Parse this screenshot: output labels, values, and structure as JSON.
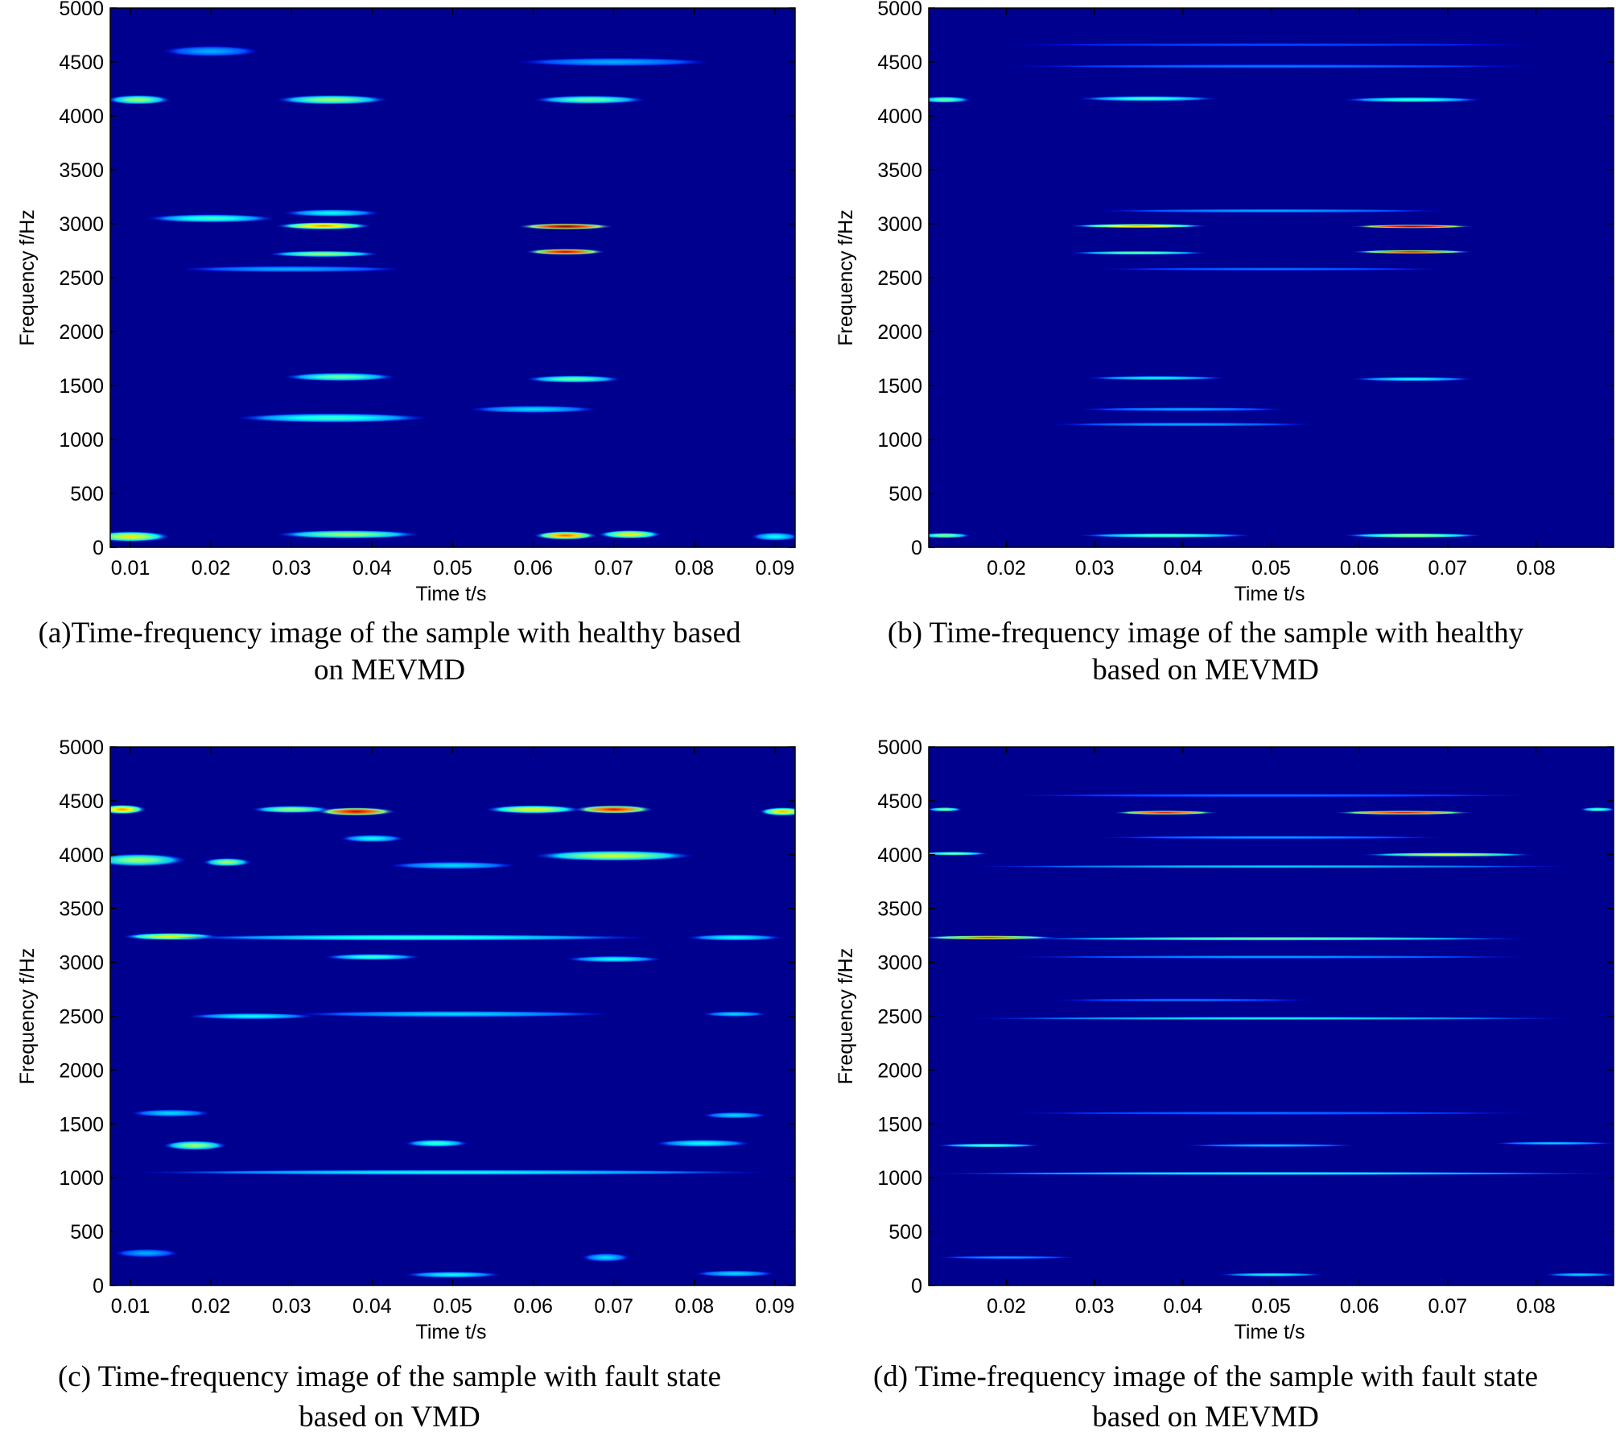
{
  "chart_data": [
    {
      "id": "a",
      "type": "heatmap",
      "xlabel": "Time t/s",
      "ylabel": "Frequency f/Hz",
      "xlim": [
        0.0075,
        0.0925
      ],
      "ylim": [
        0,
        5000
      ],
      "xticks": [
        0.01,
        0.02,
        0.03,
        0.04,
        0.05,
        0.06,
        0.07,
        0.08,
        0.09
      ],
      "xtick_labels": [
        "0.01",
        "0.02",
        "0.03",
        "0.04",
        "0.05",
        "0.06",
        "0.07",
        "0.08",
        "0.09"
      ],
      "yticks": [
        0,
        500,
        1000,
        1500,
        2000,
        2500,
        3000,
        3500,
        4000,
        4500,
        5000
      ],
      "ytick_labels": [
        "0",
        "500",
        "1000",
        "1500",
        "2000",
        "2500",
        "3000",
        "3500",
        "4000",
        "4500",
        "5000"
      ],
      "caption": [
        "(a)Time-frequency image of the sample with healthy based",
        "on MEVMD"
      ],
      "blobs": [
        {
          "t": 0.011,
          "f": 4150,
          "w": 0.004,
          "h": 45,
          "v": 0.55
        },
        {
          "t": 0.035,
          "f": 4150,
          "w": 0.007,
          "h": 45,
          "v": 0.55
        },
        {
          "t": 0.067,
          "f": 4150,
          "w": 0.007,
          "h": 40,
          "v": 0.5
        },
        {
          "t": 0.02,
          "f": 4600,
          "w": 0.006,
          "h": 50,
          "v": 0.3
        },
        {
          "t": 0.07,
          "f": 4500,
          "w": 0.012,
          "h": 40,
          "v": 0.3
        },
        {
          "t": 0.034,
          "f": 2980,
          "w": 0.006,
          "h": 35,
          "v": 0.75
        },
        {
          "t": 0.064,
          "f": 2975,
          "w": 0.006,
          "h": 30,
          "v": 1.0
        },
        {
          "t": 0.064,
          "f": 2740,
          "w": 0.005,
          "h": 30,
          "v": 0.95
        },
        {
          "t": 0.034,
          "f": 2720,
          "w": 0.007,
          "h": 30,
          "v": 0.55
        },
        {
          "t": 0.02,
          "f": 3050,
          "w": 0.008,
          "h": 40,
          "v": 0.45
        },
        {
          "t": 0.035,
          "f": 3100,
          "w": 0.006,
          "h": 35,
          "v": 0.4
        },
        {
          "t": 0.03,
          "f": 2580,
          "w": 0.014,
          "h": 30,
          "v": 0.3
        },
        {
          "t": 0.036,
          "f": 1580,
          "w": 0.007,
          "h": 40,
          "v": 0.5
        },
        {
          "t": 0.065,
          "f": 1560,
          "w": 0.006,
          "h": 35,
          "v": 0.5
        },
        {
          "t": 0.035,
          "f": 1200,
          "w": 0.012,
          "h": 45,
          "v": 0.45
        },
        {
          "t": 0.06,
          "f": 1280,
          "w": 0.008,
          "h": 35,
          "v": 0.35
        },
        {
          "t": 0.01,
          "f": 100,
          "w": 0.005,
          "h": 50,
          "v": 0.65
        },
        {
          "t": 0.037,
          "f": 120,
          "w": 0.009,
          "h": 40,
          "v": 0.55
        },
        {
          "t": 0.064,
          "f": 110,
          "w": 0.004,
          "h": 40,
          "v": 0.8
        },
        {
          "t": 0.072,
          "f": 120,
          "w": 0.004,
          "h": 40,
          "v": 0.65
        },
        {
          "t": 0.09,
          "f": 100,
          "w": 0.003,
          "h": 40,
          "v": 0.4
        }
      ]
    },
    {
      "id": "b",
      "type": "heatmap",
      "xlabel": "Time t/s",
      "ylabel": "Frequency f/Hz",
      "xlim": [
        0.0112,
        0.0888
      ],
      "ylim": [
        0,
        5000
      ],
      "xticks": [
        0.02,
        0.03,
        0.04,
        0.05,
        0.06,
        0.07,
        0.08
      ],
      "xtick_labels": [
        "0.02",
        "0.03",
        "0.04",
        "0.05",
        "0.06",
        "0.07",
        "0.08"
      ],
      "yticks": [
        0,
        500,
        1000,
        1500,
        2000,
        2500,
        3000,
        3500,
        4000,
        4500,
        5000
      ],
      "ytick_labels": [
        "0",
        "500",
        "1000",
        "1500",
        "2000",
        "2500",
        "3000",
        "3500",
        "4000",
        "4500",
        "5000"
      ],
      "caption": [
        "(b) Time-frequency image of the sample with healthy",
        "based on MEVMD"
      ],
      "blobs": [
        {
          "t": 0.013,
          "f": 4150,
          "w": 0.003,
          "h": 30,
          "v": 0.5
        },
        {
          "t": 0.036,
          "f": 4160,
          "w": 0.008,
          "h": 25,
          "v": 0.45
        },
        {
          "t": 0.066,
          "f": 4150,
          "w": 0.008,
          "h": 25,
          "v": 0.45
        },
        {
          "t": 0.05,
          "f": 4460,
          "w": 0.03,
          "h": 18,
          "v": 0.25
        },
        {
          "t": 0.05,
          "f": 4660,
          "w": 0.03,
          "h": 15,
          "v": 0.2
        },
        {
          "t": 0.035,
          "f": 2980,
          "w": 0.008,
          "h": 20,
          "v": 0.75
        },
        {
          "t": 0.066,
          "f": 2975,
          "w": 0.007,
          "h": 18,
          "v": 1.0
        },
        {
          "t": 0.066,
          "f": 2740,
          "w": 0.007,
          "h": 18,
          "v": 0.9
        },
        {
          "t": 0.035,
          "f": 2730,
          "w": 0.008,
          "h": 18,
          "v": 0.5
        },
        {
          "t": 0.05,
          "f": 3120,
          "w": 0.02,
          "h": 18,
          "v": 0.3
        },
        {
          "t": 0.05,
          "f": 2580,
          "w": 0.02,
          "h": 15,
          "v": 0.25
        },
        {
          "t": 0.037,
          "f": 1570,
          "w": 0.008,
          "h": 20,
          "v": 0.4
        },
        {
          "t": 0.066,
          "f": 1560,
          "w": 0.007,
          "h": 20,
          "v": 0.4
        },
        {
          "t": 0.04,
          "f": 1280,
          "w": 0.012,
          "h": 18,
          "v": 0.3
        },
        {
          "t": 0.04,
          "f": 1140,
          "w": 0.015,
          "h": 18,
          "v": 0.3
        },
        {
          "t": 0.013,
          "f": 110,
          "w": 0.003,
          "h": 25,
          "v": 0.55
        },
        {
          "t": 0.038,
          "f": 110,
          "w": 0.01,
          "h": 22,
          "v": 0.5
        },
        {
          "t": 0.066,
          "f": 110,
          "w": 0.008,
          "h": 22,
          "v": 0.6
        }
      ]
    },
    {
      "id": "c",
      "type": "heatmap",
      "xlabel": "Time t/s",
      "ylabel": "Frequency f/Hz",
      "xlim": [
        0.0075,
        0.0925
      ],
      "ylim": [
        0,
        5000
      ],
      "xticks": [
        0.01,
        0.02,
        0.03,
        0.04,
        0.05,
        0.06,
        0.07,
        0.08,
        0.09
      ],
      "xtick_labels": [
        "0.01",
        "0.02",
        "0.03",
        "0.04",
        "0.05",
        "0.06",
        "0.07",
        "0.08",
        "0.09"
      ],
      "yticks": [
        0,
        500,
        1000,
        1500,
        2000,
        2500,
        3000,
        3500,
        4000,
        4500,
        5000
      ],
      "ytick_labels": [
        "0",
        "500",
        "1000",
        "1500",
        "2000",
        "2500",
        "3000",
        "3500",
        "4000",
        "4500",
        "5000"
      ],
      "caption": [
        "(c) Time-frequency image of the sample with fault state",
        "based on VMD"
      ],
      "blobs": [
        {
          "t": 0.009,
          "f": 4420,
          "w": 0.003,
          "h": 45,
          "v": 0.75
        },
        {
          "t": 0.038,
          "f": 4400,
          "w": 0.005,
          "h": 40,
          "v": 0.95
        },
        {
          "t": 0.03,
          "f": 4420,
          "w": 0.005,
          "h": 35,
          "v": 0.55
        },
        {
          "t": 0.06,
          "f": 4420,
          "w": 0.006,
          "h": 40,
          "v": 0.65
        },
        {
          "t": 0.07,
          "f": 4420,
          "w": 0.005,
          "h": 40,
          "v": 0.9
        },
        {
          "t": 0.091,
          "f": 4400,
          "w": 0.003,
          "h": 40,
          "v": 0.7
        },
        {
          "t": 0.011,
          "f": 3950,
          "w": 0.006,
          "h": 60,
          "v": 0.55
        },
        {
          "t": 0.022,
          "f": 3930,
          "w": 0.003,
          "h": 40,
          "v": 0.55
        },
        {
          "t": 0.04,
          "f": 4150,
          "w": 0.004,
          "h": 35,
          "v": 0.4
        },
        {
          "t": 0.07,
          "f": 3990,
          "w": 0.01,
          "h": 50,
          "v": 0.6
        },
        {
          "t": 0.05,
          "f": 3900,
          "w": 0.008,
          "h": 35,
          "v": 0.35
        },
        {
          "t": 0.015,
          "f": 3240,
          "w": 0.006,
          "h": 35,
          "v": 0.65
        },
        {
          "t": 0.045,
          "f": 3230,
          "w": 0.03,
          "h": 30,
          "v": 0.45
        },
        {
          "t": 0.085,
          "f": 3230,
          "w": 0.006,
          "h": 30,
          "v": 0.4
        },
        {
          "t": 0.04,
          "f": 3050,
          "w": 0.006,
          "h": 30,
          "v": 0.45
        },
        {
          "t": 0.07,
          "f": 3030,
          "w": 0.006,
          "h": 30,
          "v": 0.4
        },
        {
          "t": 0.025,
          "f": 2500,
          "w": 0.008,
          "h": 30,
          "v": 0.4
        },
        {
          "t": 0.05,
          "f": 2520,
          "w": 0.02,
          "h": 30,
          "v": 0.35
        },
        {
          "t": 0.085,
          "f": 2520,
          "w": 0.004,
          "h": 25,
          "v": 0.35
        },
        {
          "t": 0.018,
          "f": 1300,
          "w": 0.004,
          "h": 45,
          "v": 0.55
        },
        {
          "t": 0.048,
          "f": 1320,
          "w": 0.004,
          "h": 35,
          "v": 0.45
        },
        {
          "t": 0.081,
          "f": 1320,
          "w": 0.006,
          "h": 35,
          "v": 0.4
        },
        {
          "t": 0.015,
          "f": 1600,
          "w": 0.005,
          "h": 35,
          "v": 0.35
        },
        {
          "t": 0.085,
          "f": 1580,
          "w": 0.004,
          "h": 30,
          "v": 0.35
        },
        {
          "t": 0.05,
          "f": 1050,
          "w": 0.04,
          "h": 25,
          "v": 0.4
        },
        {
          "t": 0.05,
          "f": 100,
          "w": 0.006,
          "h": 30,
          "v": 0.4
        },
        {
          "t": 0.069,
          "f": 260,
          "w": 0.003,
          "h": 40,
          "v": 0.35
        },
        {
          "t": 0.085,
          "f": 110,
          "w": 0.005,
          "h": 30,
          "v": 0.35
        },
        {
          "t": 0.012,
          "f": 300,
          "w": 0.004,
          "h": 40,
          "v": 0.3
        }
      ]
    },
    {
      "id": "d",
      "type": "heatmap",
      "xlabel": "Time t/s",
      "ylabel": "Frequency f/Hz",
      "xlim": [
        0.0112,
        0.0888
      ],
      "ylim": [
        0,
        5000
      ],
      "xticks": [
        0.02,
        0.03,
        0.04,
        0.05,
        0.06,
        0.07,
        0.08
      ],
      "xtick_labels": [
        "0.02",
        "0.03",
        "0.04",
        "0.05",
        "0.06",
        "0.07",
        "0.08"
      ],
      "yticks": [
        0,
        500,
        1000,
        1500,
        2000,
        2500,
        3000,
        3500,
        4000,
        4500,
        5000
      ],
      "ytick_labels": [
        "0",
        "500",
        "1000",
        "1500",
        "2000",
        "2500",
        "3000",
        "3500",
        "4000",
        "4500",
        "5000"
      ],
      "caption": [
        "(d) Time-frequency image of the sample with fault state",
        "based on MEVMD"
      ],
      "blobs": [
        {
          "t": 0.038,
          "f": 4390,
          "w": 0.006,
          "h": 20,
          "v": 0.9
        },
        {
          "t": 0.065,
          "f": 4390,
          "w": 0.008,
          "h": 20,
          "v": 0.9
        },
        {
          "t": 0.013,
          "f": 4420,
          "w": 0.002,
          "h": 20,
          "v": 0.55
        },
        {
          "t": 0.087,
          "f": 4420,
          "w": 0.002,
          "h": 20,
          "v": 0.5
        },
        {
          "t": 0.05,
          "f": 4550,
          "w": 0.03,
          "h": 15,
          "v": 0.25
        },
        {
          "t": 0.014,
          "f": 4010,
          "w": 0.004,
          "h": 18,
          "v": 0.55
        },
        {
          "t": 0.07,
          "f": 4000,
          "w": 0.01,
          "h": 20,
          "v": 0.6
        },
        {
          "t": 0.05,
          "f": 3890,
          "w": 0.035,
          "h": 15,
          "v": 0.35
        },
        {
          "t": 0.05,
          "f": 4160,
          "w": 0.02,
          "h": 15,
          "v": 0.3
        },
        {
          "t": 0.018,
          "f": 3230,
          "w": 0.008,
          "h": 20,
          "v": 0.85
        },
        {
          "t": 0.05,
          "f": 3220,
          "w": 0.03,
          "h": 18,
          "v": 0.5
        },
        {
          "t": 0.05,
          "f": 3050,
          "w": 0.03,
          "h": 15,
          "v": 0.3
        },
        {
          "t": 0.05,
          "f": 2480,
          "w": 0.035,
          "h": 15,
          "v": 0.4
        },
        {
          "t": 0.04,
          "f": 2650,
          "w": 0.015,
          "h": 15,
          "v": 0.25
        },
        {
          "t": 0.018,
          "f": 1300,
          "w": 0.006,
          "h": 18,
          "v": 0.5
        },
        {
          "t": 0.05,
          "f": 1300,
          "w": 0.01,
          "h": 15,
          "v": 0.35
        },
        {
          "t": 0.082,
          "f": 1320,
          "w": 0.007,
          "h": 15,
          "v": 0.35
        },
        {
          "t": 0.05,
          "f": 1040,
          "w": 0.04,
          "h": 15,
          "v": 0.45
        },
        {
          "t": 0.05,
          "f": 1600,
          "w": 0.03,
          "h": 15,
          "v": 0.25
        },
        {
          "t": 0.05,
          "f": 100,
          "w": 0.006,
          "h": 18,
          "v": 0.4
        },
        {
          "t": 0.085,
          "f": 100,
          "w": 0.004,
          "h": 18,
          "v": 0.35
        },
        {
          "t": 0.02,
          "f": 260,
          "w": 0.008,
          "h": 15,
          "v": 0.3
        }
      ]
    }
  ]
}
